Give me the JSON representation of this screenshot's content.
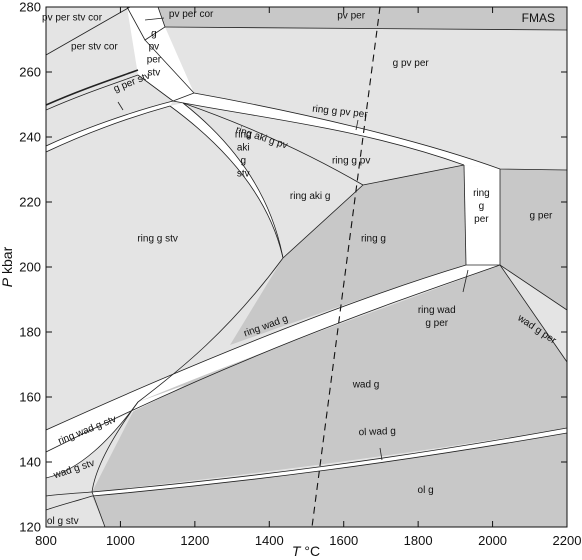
{
  "chart_data": {
    "type": "phase-diagram",
    "system_label": "FMAS",
    "xlabel_var": "T",
    "xlabel_unit": "°C",
    "ylabel_var": "P",
    "ylabel_unit": "kbar",
    "xlim": [
      800,
      2200
    ],
    "ylim": [
      120,
      280
    ],
    "x_ticks": [
      "800",
      "1000",
      "1200",
      "1400",
      "1600",
      "1800",
      "2000",
      "2200"
    ],
    "y_ticks": [
      "120",
      "140",
      "160",
      "180",
      "200",
      "220",
      "240",
      "260",
      "280"
    ],
    "colors": {
      "light": "#e4e4e4",
      "dark": "#c8c8c8",
      "white": "#ffffff",
      "line": "#222222"
    },
    "fields": [
      {
        "id": "pv-per-stv-cor",
        "text": [
          "pv per stv cor"
        ],
        "x": 870,
        "y": 277,
        "shade": "light"
      },
      {
        "id": "pv-per-cor",
        "text": [
          "pv per cor"
        ],
        "x": 1190,
        "y": 278,
        "shade": "dark"
      },
      {
        "id": "pv-per",
        "text": [
          "pv per"
        ],
        "x": 1620,
        "y": 277.5,
        "shade": "dark"
      },
      {
        "id": "per-stv-cor",
        "text": [
          "per stv cor"
        ],
        "x": 930,
        "y": 268,
        "shade": "light"
      },
      {
        "id": "g-pv-per-stv",
        "text": [
          "g",
          "pv",
          "per",
          "stv"
        ],
        "x": 1090,
        "y": 266,
        "shade": "light"
      },
      {
        "id": "g-per-stv",
        "text": [
          "g per stv"
        ],
        "x": 1030,
        "y": 257,
        "shade": "light"
      },
      {
        "id": "g-pv-per",
        "text": [
          "g pv per"
        ],
        "x": 1780,
        "y": 263,
        "shade": "light"
      },
      {
        "id": "ring-g-pv-per",
        "text": [
          "ring g pv per"
        ],
        "x": 1590,
        "y": 248,
        "shade": "white"
      },
      {
        "id": "ring-aki-g-pv",
        "text": [
          "ring aki g pv"
        ],
        "x": 1380,
        "y": 240,
        "shade": "light"
      },
      {
        "id": "ring-g-pv",
        "text": [
          "ring g pv"
        ],
        "x": 1620,
        "y": 233,
        "shade": "light"
      },
      {
        "id": "ring-aki-g-stv",
        "text": [
          "ring",
          "aki",
          "g",
          "stv"
        ],
        "x": 1330,
        "y": 235,
        "shade": "white"
      },
      {
        "id": "ring-aki-g",
        "text": [
          "ring aki g"
        ],
        "x": 1510,
        "y": 222,
        "shade": "light"
      },
      {
        "id": "ring-g-stv",
        "text": [
          "ring g stv"
        ],
        "x": 1100,
        "y": 209,
        "shade": "light"
      },
      {
        "id": "ring-g",
        "text": [
          "ring g"
        ],
        "x": 1680,
        "y": 209,
        "shade": "dark"
      },
      {
        "id": "ring-g-per",
        "text": [
          "ring",
          "g",
          "per"
        ],
        "x": 1970,
        "y": 219,
        "shade": "white"
      },
      {
        "id": "g-per",
        "text": [
          "g per"
        ],
        "x": 2130,
        "y": 216,
        "shade": "dark"
      },
      {
        "id": "ring-wad-g",
        "text": [
          "ring wad g"
        ],
        "x": 1390,
        "y": 182,
        "shade": "white"
      },
      {
        "id": "ring-wad-g-per",
        "text": [
          "ring wad",
          "g per"
        ],
        "x": 1850,
        "y": 185,
        "shade": "white"
      },
      {
        "id": "wad-g-per",
        "text": [
          "wad g per"
        ],
        "x": 2120,
        "y": 181,
        "shade": "light"
      },
      {
        "id": "wad-g",
        "text": [
          "wad g"
        ],
        "x": 1660,
        "y": 164,
        "shade": "dark"
      },
      {
        "id": "ring-wad-g-stv",
        "text": [
          "ring wad g stv"
        ],
        "x": 910,
        "y": 150,
        "shade": "white"
      },
      {
        "id": "ol-wad-g",
        "text": [
          "ol wad g"
        ],
        "x": 1690,
        "y": 149.5,
        "shade": "white"
      },
      {
        "id": "wad-g-stv",
        "text": [
          "wad g stv"
        ],
        "x": 875,
        "y": 138,
        "shade": "light"
      },
      {
        "id": "ol-g",
        "text": [
          "ol g"
        ],
        "x": 1820,
        "y": 131.5,
        "shade": "dark"
      },
      {
        "id": "ol-g-stv",
        "text": [
          "ol g stv"
        ],
        "x": 845,
        "y": 122,
        "shade": "light"
      }
    ]
  }
}
